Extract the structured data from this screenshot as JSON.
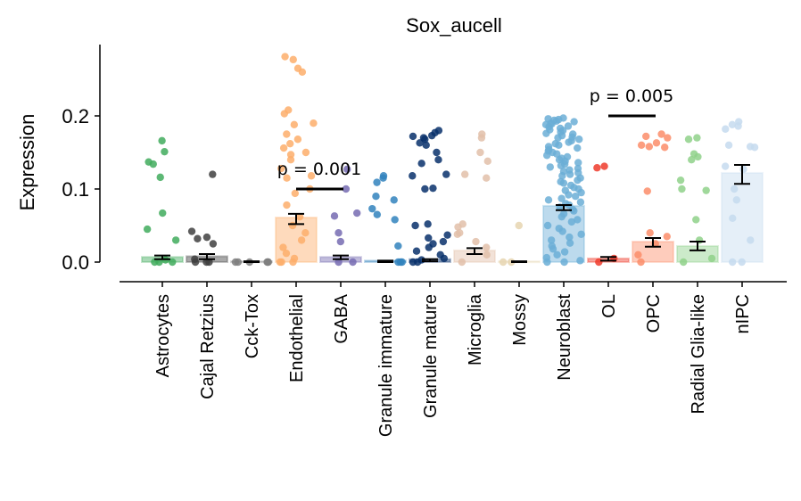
{
  "chart_data": {
    "type": "bar",
    "title": "Sox_aucell",
    "xlabel": "",
    "ylabel": "Expression",
    "ylim": [
      -0.027,
      0.298
    ],
    "yticks": [
      0.0,
      0.1,
      0.2
    ],
    "ytick_labels": [
      "0.0",
      "0.1",
      "0.2"
    ],
    "grid": false,
    "categories": [
      "Astrocytes",
      "Cajal Retzius",
      "Cck-Tox",
      "Endothelial",
      "GABA",
      "Granule immature",
      "Granule mature",
      "Microglia",
      "Mossy",
      "Neuroblast",
      "OL",
      "OPC",
      "Radial Glia-like",
      "nIPC"
    ],
    "colors": [
      "#41ab5d",
      "#404040",
      "#7f7f7f",
      "#fdae6b",
      "#756bb1",
      "#3182bd",
      "#08306b",
      "#e2bfa9",
      "#e6d5b0",
      "#6baed6",
      "#ef3b2c",
      "#fc8d6a",
      "#8fd18a",
      "#c6dbef"
    ],
    "means": [
      0.007,
      0.008,
      0.001,
      0.061,
      0.007,
      0.002,
      0.004,
      0.016,
      0.001,
      0.077,
      0.005,
      0.028,
      0.022,
      0.122
    ],
    "errors": [
      [
        0.004,
        0.009
      ],
      [
        0.004,
        0.011
      ],
      [
        0.0,
        0.001
      ],
      [
        0.052,
        0.066
      ],
      [
        0.004,
        0.009
      ],
      [
        0.0,
        0.002
      ],
      [
        0.001,
        0.004
      ],
      [
        0.011,
        0.019
      ],
      [
        0.0,
        0.001
      ],
      [
        0.071,
        0.078
      ],
      [
        0.002,
        0.007
      ],
      [
        0.021,
        0.033
      ],
      [
        0.016,
        0.028
      ],
      [
        0.107,
        0.133
      ]
    ],
    "points": [
      [
        0.166,
        0.151,
        0.137,
        0.134,
        0.116,
        0.067,
        0.045,
        0.03,
        0.003,
        0,
        0,
        0
      ],
      [
        0.12,
        0.042,
        0.034,
        0.032,
        0.025,
        0.004,
        0,
        0,
        0
      ],
      [
        0,
        0,
        0,
        0,
        0,
        0
      ],
      [
        0.281,
        0.277,
        0.265,
        0.26,
        0.208,
        0.203,
        0.19,
        0.188,
        0.175,
        0.168,
        0.162,
        0.156,
        0.15,
        0.147,
        0.14,
        0.128,
        0.118,
        0.115,
        0.1,
        0.094,
        0.078,
        0.062,
        0.05,
        0.04,
        0.03,
        0.02,
        0.012,
        0.005,
        0,
        0,
        0
      ],
      [
        0.127,
        0.1,
        0.067,
        0.063,
        0.04,
        0.028,
        0,
        0
      ],
      [
        0.118,
        0.115,
        0.109,
        0.09,
        0.085,
        0.073,
        0.065,
        0.058,
        0.022,
        0,
        0,
        0
      ],
      [
        0.18,
        0.177,
        0.173,
        0.172,
        0.17,
        0.168,
        0.163,
        0.16,
        0.15,
        0.14,
        0.135,
        0.12,
        0.118,
        0.1,
        0.101,
        0.052,
        0.05,
        0.037,
        0.033,
        0.028,
        0.025,
        0.02,
        0.015,
        0.01,
        0.005,
        0.003,
        0,
        0
      ],
      [
        0.175,
        0.17,
        0.15,
        0.138,
        0.12,
        0.115,
        0.052,
        0.048,
        0.04,
        0.038,
        0.028,
        0.02,
        0.01,
        0
      ],
      [
        0.05,
        0,
        0
      ],
      [
        0.197,
        0.196,
        0.195,
        0.194,
        0.193,
        0.192,
        0.19,
        0.189,
        0.188,
        0.186,
        0.185,
        0.183,
        0.181,
        0.18,
        0.178,
        0.176,
        0.175,
        0.173,
        0.171,
        0.17,
        0.168,
        0.166,
        0.164,
        0.162,
        0.16,
        0.158,
        0.156,
        0.154,
        0.152,
        0.15,
        0.148,
        0.146,
        0.144,
        0.142,
        0.14,
        0.138,
        0.136,
        0.134,
        0.132,
        0.13,
        0.128,
        0.126,
        0.124,
        0.122,
        0.12,
        0.118,
        0.115,
        0.112,
        0.11,
        0.108,
        0.105,
        0.102,
        0.1,
        0.098,
        0.095,
        0.092,
        0.09,
        0.087,
        0.085,
        0.082,
        0.08,
        0.078,
        0.075,
        0.072,
        0.07,
        0.066,
        0.062,
        0.058,
        0.055,
        0.05,
        0.046,
        0.042,
        0.038,
        0.034,
        0.03,
        0.026,
        0.022,
        0.018,
        0.014,
        0.01,
        0.006,
        0.002,
        0,
        0
      ],
      [
        0.131,
        0.129,
        0.005,
        0
      ],
      [
        0.175,
        0.172,
        0.17,
        0.163,
        0.158,
        0.157,
        0.16,
        0.097,
        0.04,
        0.035,
        0.025,
        0.01,
        0
      ],
      [
        0.17,
        0.168,
        0.148,
        0.144,
        0.14,
        0.112,
        0.1,
        0.098,
        0.058,
        0.03,
        0.005,
        0
      ],
      [
        0.192,
        0.188,
        0.186,
        0.182,
        0.16,
        0.158,
        0.157,
        0.131,
        0.127,
        0.1,
        0.085,
        0.06,
        0.03,
        0,
        0
      ]
    ],
    "annotations": [
      {
        "text": "p = 0.001",
        "from": "Endothelial",
        "to": "GABA",
        "y": 0.1
      },
      {
        "text": "p = 0.005",
        "from": "OL",
        "to": "OPC",
        "y": 0.2
      }
    ]
  }
}
